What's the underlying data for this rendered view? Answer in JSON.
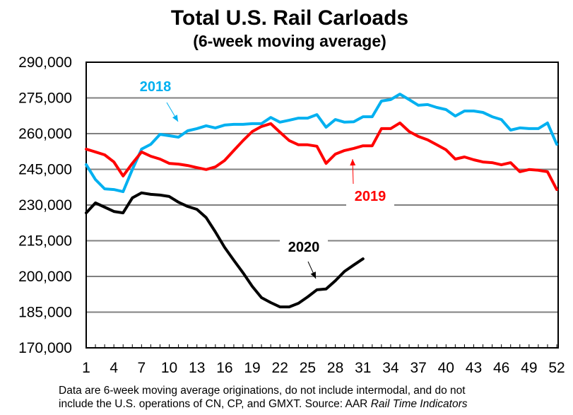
{
  "chart_data": {
    "type": "line",
    "title": "Total U.S. Rail Carloads",
    "subtitle": "(6-week moving average)",
    "xlabel": "",
    "ylabel": "",
    "xlim": [
      1,
      52
    ],
    "ylim": [
      170000,
      290000
    ],
    "grid": true,
    "y_ticks": [
      170000,
      185000,
      200000,
      215000,
      230000,
      245000,
      260000,
      275000,
      290000
    ],
    "y_tick_labels": [
      "170,000",
      "185,000",
      "200,000",
      "215,000",
      "230,000",
      "245,000",
      "260,000",
      "275,000",
      "290,000"
    ],
    "x_ticks": [
      1,
      4,
      7,
      10,
      13,
      16,
      19,
      22,
      25,
      28,
      31,
      34,
      37,
      40,
      43,
      46,
      49,
      52
    ],
    "x_tick_labels": [
      "1",
      "4",
      "7",
      "10",
      "13",
      "16",
      "19",
      "22",
      "25",
      "28",
      "31",
      "34",
      "37",
      "40",
      "43",
      "46",
      "49",
      "52"
    ],
    "legend": "inline-annotations",
    "series": [
      {
        "name": "2018",
        "color": "#00B0F0",
        "x": [
          1,
          2,
          3,
          4,
          5,
          6,
          7,
          8,
          9,
          10,
          11,
          12,
          13,
          14,
          15,
          16,
          17,
          18,
          19,
          20,
          21,
          22,
          23,
          24,
          25,
          26,
          27,
          28,
          29,
          30,
          31,
          32,
          33,
          34,
          35,
          36,
          37,
          38,
          39,
          40,
          41,
          42,
          43,
          44,
          45,
          46,
          47,
          48,
          49,
          50,
          51,
          52
        ],
        "values": [
          247000,
          240700,
          236800,
          236500,
          235600,
          244900,
          253500,
          255500,
          259700,
          259100,
          258500,
          261200,
          262100,
          263300,
          262400,
          263600,
          263900,
          263900,
          264200,
          264200,
          266800,
          264800,
          265600,
          266500,
          266500,
          268000,
          262700,
          265900,
          264800,
          265000,
          267100,
          267100,
          273700,
          274300,
          276600,
          274300,
          271900,
          272200,
          271000,
          270100,
          267400,
          269500,
          269500,
          268900,
          267100,
          265900,
          261500,
          262400,
          262100,
          262100,
          264500,
          255500
        ]
      },
      {
        "name": "2019",
        "color": "#FF0000",
        "x": [
          1,
          2,
          3,
          4,
          5,
          6,
          7,
          8,
          9,
          10,
          11,
          12,
          13,
          14,
          15,
          16,
          17,
          18,
          19,
          20,
          21,
          22,
          23,
          24,
          25,
          26,
          27,
          28,
          29,
          30,
          31,
          32,
          33,
          34,
          35,
          36,
          37,
          38,
          39,
          40,
          41,
          42,
          43,
          44,
          45,
          46,
          47,
          48,
          49,
          50,
          51,
          52
        ],
        "values": [
          253500,
          252300,
          251100,
          248100,
          242200,
          247500,
          252300,
          250500,
          249300,
          247500,
          247200,
          246600,
          245700,
          244900,
          246000,
          248700,
          252900,
          257100,
          260900,
          263000,
          264200,
          260600,
          257100,
          255300,
          255300,
          254700,
          247500,
          251400,
          252900,
          253800,
          254900,
          254900,
          262100,
          262100,
          264500,
          260900,
          258800,
          257400,
          255300,
          253200,
          249300,
          250200,
          249000,
          248100,
          247800,
          246900,
          247800,
          244000,
          244900,
          244600,
          244000,
          236500
        ]
      },
      {
        "name": "2020",
        "color": "#000000",
        "x": [
          1,
          2,
          3,
          4,
          5,
          6,
          7,
          8,
          9,
          10,
          11,
          12,
          13,
          14,
          15,
          16,
          17,
          18,
          19,
          20,
          21,
          22,
          23,
          24,
          25,
          26,
          27,
          28,
          29,
          30,
          31
        ],
        "values": [
          226700,
          230900,
          229100,
          227300,
          226700,
          233000,
          235100,
          234500,
          234200,
          233600,
          231200,
          229400,
          228200,
          224700,
          218700,
          212200,
          206800,
          201500,
          195800,
          191100,
          189000,
          187200,
          187200,
          188700,
          191400,
          194400,
          194700,
          198200,
          202100,
          204800,
          207400
        ]
      }
    ],
    "annotations": [
      {
        "text": "2018",
        "series": "2018",
        "arrow_to_week": 11,
        "label_near_week": 8
      },
      {
        "text": "2019",
        "series": "2019",
        "arrow_to_week": 30,
        "label_near_week": 32
      },
      {
        "text": "2020",
        "series": "2020",
        "arrow_to_week": 26,
        "label_near_week": 23
      }
    ],
    "footnote": {
      "line1": "Data are 6-week moving average originations, do not include intermodal, and do not",
      "line2_plain": "include the U.S. operations of CN, CP, and GMXT.   Source: AAR ",
      "line2_italic": "Rail Time Indicators"
    }
  }
}
